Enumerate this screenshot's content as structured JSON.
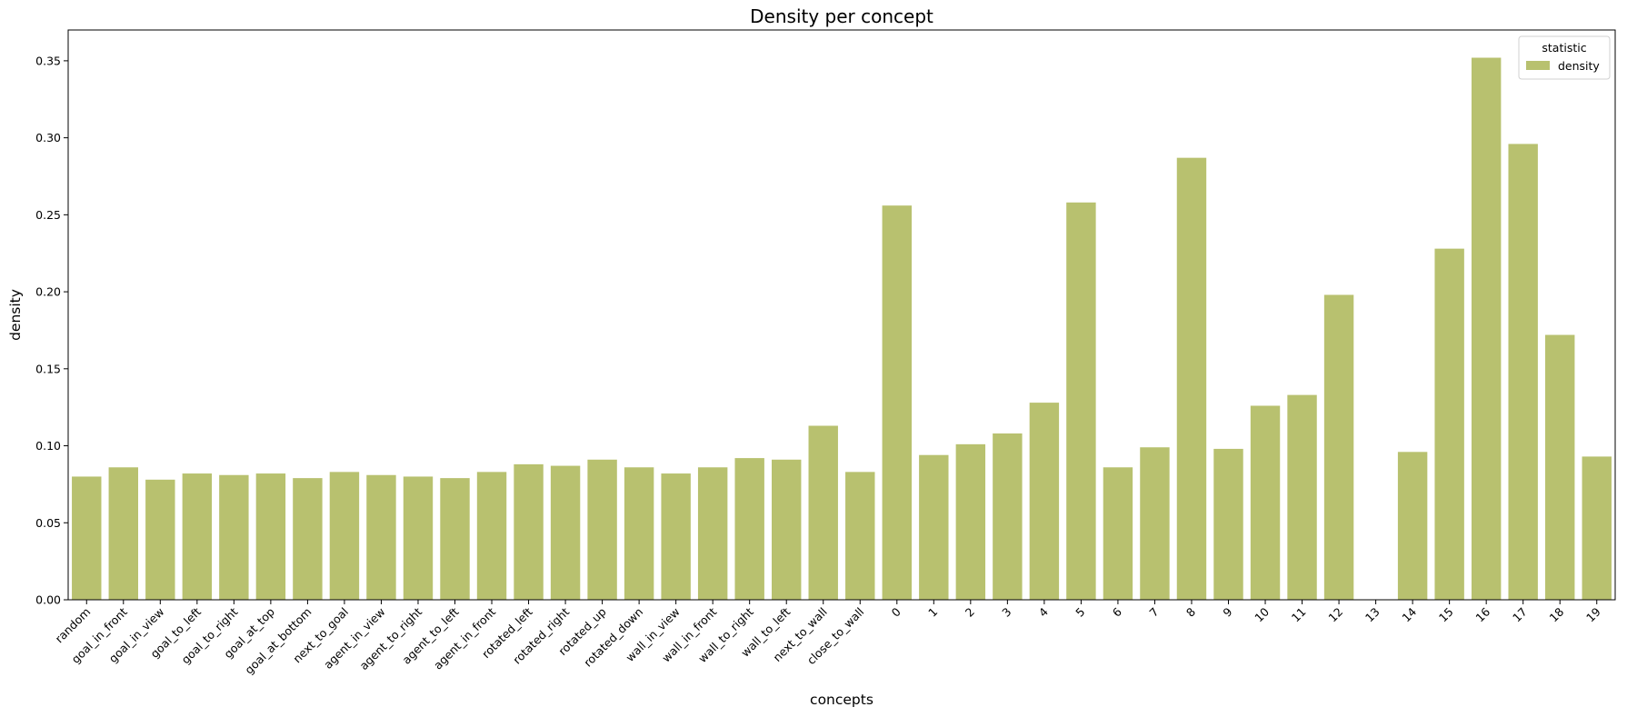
{
  "chart_data": {
    "type": "bar",
    "title": "Density per concept",
    "xlabel": "concepts",
    "ylabel": "density",
    "ylim": [
      0,
      0.37
    ],
    "yticks": [
      "0.00",
      "0.05",
      "0.10",
      "0.15",
      "0.20",
      "0.25",
      "0.30",
      "0.35"
    ],
    "grid": false,
    "legend": {
      "title": "statistic",
      "placement": "top-right"
    },
    "categories": [
      "random",
      "goal_in_front",
      "goal_in_view",
      "goal_to_left",
      "goal_to_right",
      "goal_at_top",
      "goal_at_bottom",
      "next_to_goal",
      "agent_in_view",
      "agent_to_right",
      "agent_to_left",
      "agent_in_front",
      "rotated_left",
      "rotated_right",
      "rotated_up",
      "rotated_down",
      "wall_in_view",
      "wall_in_front",
      "wall_to_right",
      "wall_to_left",
      "next_to_wall",
      "close_to_wall",
      "0",
      "1",
      "2",
      "3",
      "4",
      "5",
      "6",
      "7",
      "8",
      "9",
      "10",
      "11",
      "12",
      "13",
      "14",
      "15",
      "16",
      "17",
      "18",
      "19"
    ],
    "series": [
      {
        "name": "density",
        "color": "#b8c16f",
        "values": [
          0.08,
          0.086,
          0.078,
          0.082,
          0.081,
          0.082,
          0.079,
          0.083,
          0.081,
          0.08,
          0.079,
          0.083,
          0.088,
          0.087,
          0.091,
          0.086,
          0.082,
          0.086,
          0.092,
          0.091,
          0.113,
          0.083,
          0.256,
          0.094,
          0.101,
          0.108,
          0.128,
          0.258,
          0.086,
          0.099,
          0.287,
          0.098,
          0.126,
          0.133,
          0.198,
          0.0,
          0.096,
          0.228,
          0.352,
          0.296,
          0.172,
          0.093
        ]
      }
    ]
  }
}
